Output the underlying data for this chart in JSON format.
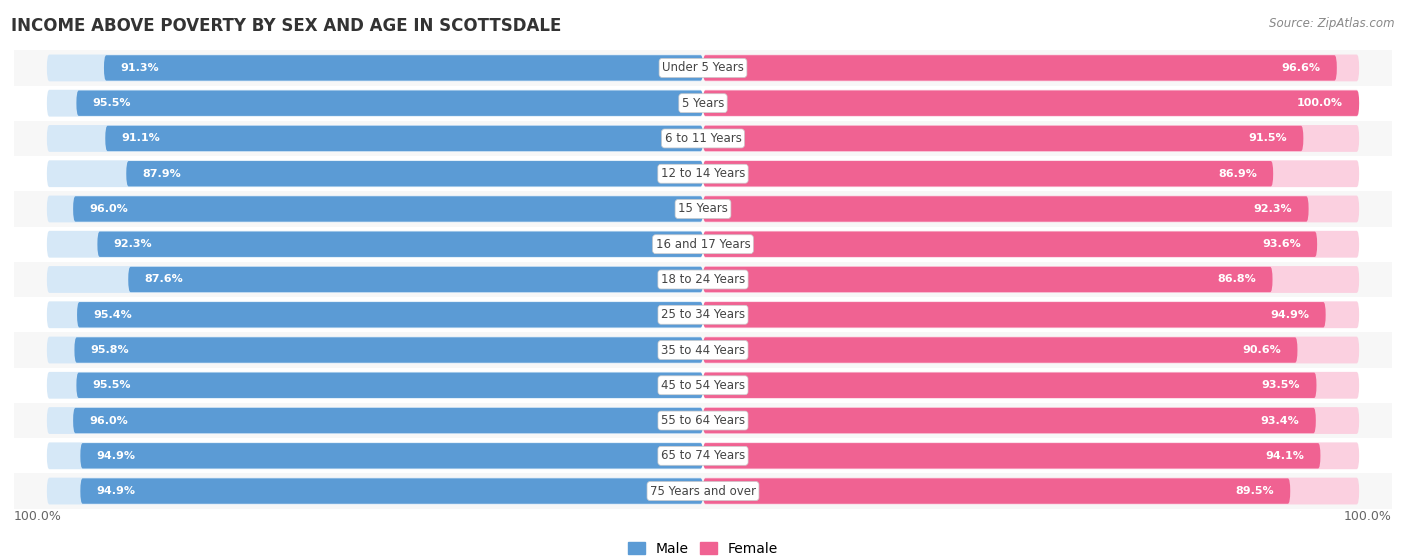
{
  "title": "INCOME ABOVE POVERTY BY SEX AND AGE IN SCOTTSDALE",
  "source": "Source: ZipAtlas.com",
  "categories": [
    "Under 5 Years",
    "5 Years",
    "6 to 11 Years",
    "12 to 14 Years",
    "15 Years",
    "16 and 17 Years",
    "18 to 24 Years",
    "25 to 34 Years",
    "35 to 44 Years",
    "45 to 54 Years",
    "55 to 64 Years",
    "65 to 74 Years",
    "75 Years and over"
  ],
  "male_values": [
    91.3,
    95.5,
    91.1,
    87.9,
    96.0,
    92.3,
    87.6,
    95.4,
    95.8,
    95.5,
    96.0,
    94.9,
    94.9
  ],
  "female_values": [
    96.6,
    100.0,
    91.5,
    86.9,
    92.3,
    93.6,
    86.8,
    94.9,
    90.6,
    93.5,
    93.4,
    94.1,
    89.5
  ],
  "male_color": "#5b9bd5",
  "male_bg_color": "#d6e8f7",
  "female_color": "#f06292",
  "female_bg_color": "#fbd0e0",
  "background_color": "#ffffff",
  "row_bg_color": "#f0f0f0",
  "label_color": "#555555",
  "value_color": "#ffffff",
  "x_max": 100.0,
  "legend_male": "Male",
  "legend_female": "Female"
}
